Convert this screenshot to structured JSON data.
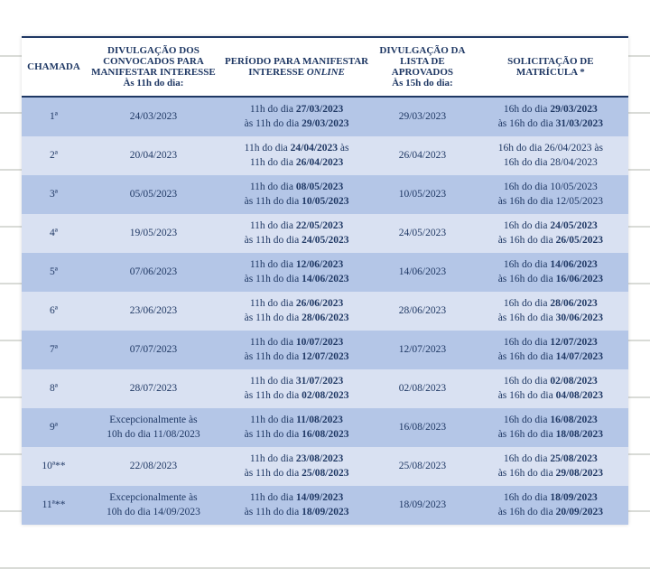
{
  "colors": {
    "text": "#1f3864",
    "header_rule": "#1f3864",
    "band_a": "#b4c6e7",
    "band_b": "#d9e1f2",
    "page_bg": "#ffffff"
  },
  "table": {
    "columns": [
      {
        "title": "CHAMADA"
      },
      {
        "title": "DIVULGAÇÃO DOS CONVOCADOS PARA MANIFESTAR INTERESSE",
        "subtitle": "Às 11h do dia:"
      },
      {
        "title": "PERÍODO PARA MANIFESTAR INTERESSE",
        "suffix_italic": " ONLINE"
      },
      {
        "title": "DIVULGAÇÃO DA LISTA DE APROVADOS",
        "subtitle": "Às 15h do dia:"
      },
      {
        "title": "SOLICITAÇÃO DE MATRÍCULA *"
      }
    ],
    "rows": [
      {
        "chamada": "1ª",
        "divulgacao": "24/03/2023",
        "periodo": {
          "l1": "11h do dia ",
          "d1": "27/03/2023",
          "l2": "às 11h do dia ",
          "d2": "29/03/2023"
        },
        "aprovados": "29/03/2023",
        "matricula": {
          "l1": "16h do dia ",
          "d1": "29/03/2023",
          "l2": "às 16h do dia ",
          "d2": "31/03/2023",
          "bold": true
        }
      },
      {
        "chamada": "2ª",
        "divulgacao": "20/04/2023",
        "periodo": {
          "l1": "11h do dia ",
          "d1": "24/04/2023",
          "l1_suffix": " às",
          "l2": "11h do dia ",
          "d2": "26/04/2023"
        },
        "aprovados": "26/04/2023",
        "matricula": {
          "l1": "16h do dia ",
          "d1": "26/04/2023",
          "l1_suffix": " às",
          "l2": "16h do dia ",
          "d2": "28/04/2023",
          "bold": false
        }
      },
      {
        "chamada": "3ª",
        "divulgacao": "05/05/2023",
        "periodo": {
          "l1": "11h do dia ",
          "d1": "08/05/2023",
          "l2": "às 11h do dia ",
          "d2": "10/05/2023"
        },
        "aprovados": "10/05/2023",
        "matricula": {
          "l1": "16h do dia 10/05/2023",
          "l2": "às 16h do dia 12/05/2023",
          "plain": true
        }
      },
      {
        "chamada": "4ª",
        "divulgacao": "19/05/2023",
        "periodo": {
          "l1": "11h do dia ",
          "d1": "22/05/2023",
          "l2": "às 11h do dia ",
          "d2": "24/05/2023"
        },
        "aprovados": "24/05/2023",
        "matricula": {
          "l1": "16h do dia ",
          "d1": "24/05/2023",
          "l2": "às 16h do dia ",
          "d2": "26/05/2023",
          "bold": true
        }
      },
      {
        "chamada": "5ª",
        "divulgacao": "07/06/2023",
        "periodo": {
          "l1": "11h do dia ",
          "d1": "12/06/2023",
          "l2": "às 11h do dia ",
          "d2": "14/06/2023"
        },
        "aprovados": "14/06/2023",
        "matricula": {
          "l1": "16h do dia ",
          "d1": "14/06/2023",
          "l2": "às 16h do dia ",
          "d2": "16/06/2023",
          "bold": true
        }
      },
      {
        "chamada": "6ª",
        "divulgacao": "23/06/2023",
        "periodo": {
          "l1": "11h do dia ",
          "d1": "26/06/2023",
          "l2": "às 11h do dia ",
          "d2": "28/06/2023"
        },
        "aprovados": "28/06/2023",
        "matricula": {
          "l1": "16h do dia ",
          "d1": "28/06/2023",
          "l2": "às 16h do dia ",
          "d2": "30/06/2023",
          "bold": true
        }
      },
      {
        "chamada": "7ª",
        "divulgacao": "07/07/2023",
        "periodo": {
          "l1": "11h do dia ",
          "d1": "10/07/2023",
          "l2": "às 11h do dia ",
          "d2": "12/07/2023"
        },
        "aprovados": "12/07/2023",
        "matricula": {
          "l1": "16h do dia ",
          "d1": "12/07/2023",
          "l2": "às 16h do dia ",
          "d2": "14/07/2023",
          "bold": true
        }
      },
      {
        "chamada": "8ª",
        "divulgacao": "28/07/2023",
        "periodo": {
          "l1": "11h do dia ",
          "d1": "31/07/2023",
          "l2": "às 11h do dia ",
          "d2": "02/08/2023"
        },
        "aprovados": "02/08/2023",
        "matricula": {
          "l1": "16h do dia ",
          "d1": "02/08/2023",
          "l2": "às 16h do dia ",
          "d2": "04/08/2023",
          "bold": true
        }
      },
      {
        "chamada": "9ª",
        "divulgacao_l1": "Excepcionalmente às",
        "divulgacao_l2": "10h do dia 11/08/2023",
        "periodo": {
          "l1": "11h do dia ",
          "d1": "11/08/2023",
          "l2": "às 11h do dia ",
          "d2": "16/08/2023"
        },
        "aprovados": "16/08/2023",
        "matricula": {
          "l1": "16h do dia ",
          "d1": "16/08/2023",
          "l2": "às 16h do dia ",
          "d2": "18/08/2023",
          "bold": true
        }
      },
      {
        "chamada": "10ª**",
        "divulgacao": "22/08/2023",
        "periodo": {
          "l1": "11h do dia ",
          "d1": "23/08/2023",
          "l2": "às 11h do dia ",
          "d2": "25/08/2023"
        },
        "aprovados": "25/08/2023",
        "matricula": {
          "l1": "16h do dia ",
          "d1": "25/08/2023",
          "l2": "às 16h do dia ",
          "d2": "29/08/2023",
          "bold": true
        }
      },
      {
        "chamada": "11ª**",
        "divulgacao_l1": "Excepcionalmente às",
        "divulgacao_l2": "10h do dia 14/09/2023",
        "periodo": {
          "l1": "11h do dia ",
          "d1": "14/09/2023",
          "l2": "às 11h do dia ",
          "d2": "18/09/2023"
        },
        "aprovados": "18/09/2023",
        "matricula": {
          "l1": "16h do dia ",
          "d1": "18/09/2023",
          "l2": "às 16h do dia ",
          "d2": "20/09/2023",
          "bold": true
        }
      }
    ]
  }
}
